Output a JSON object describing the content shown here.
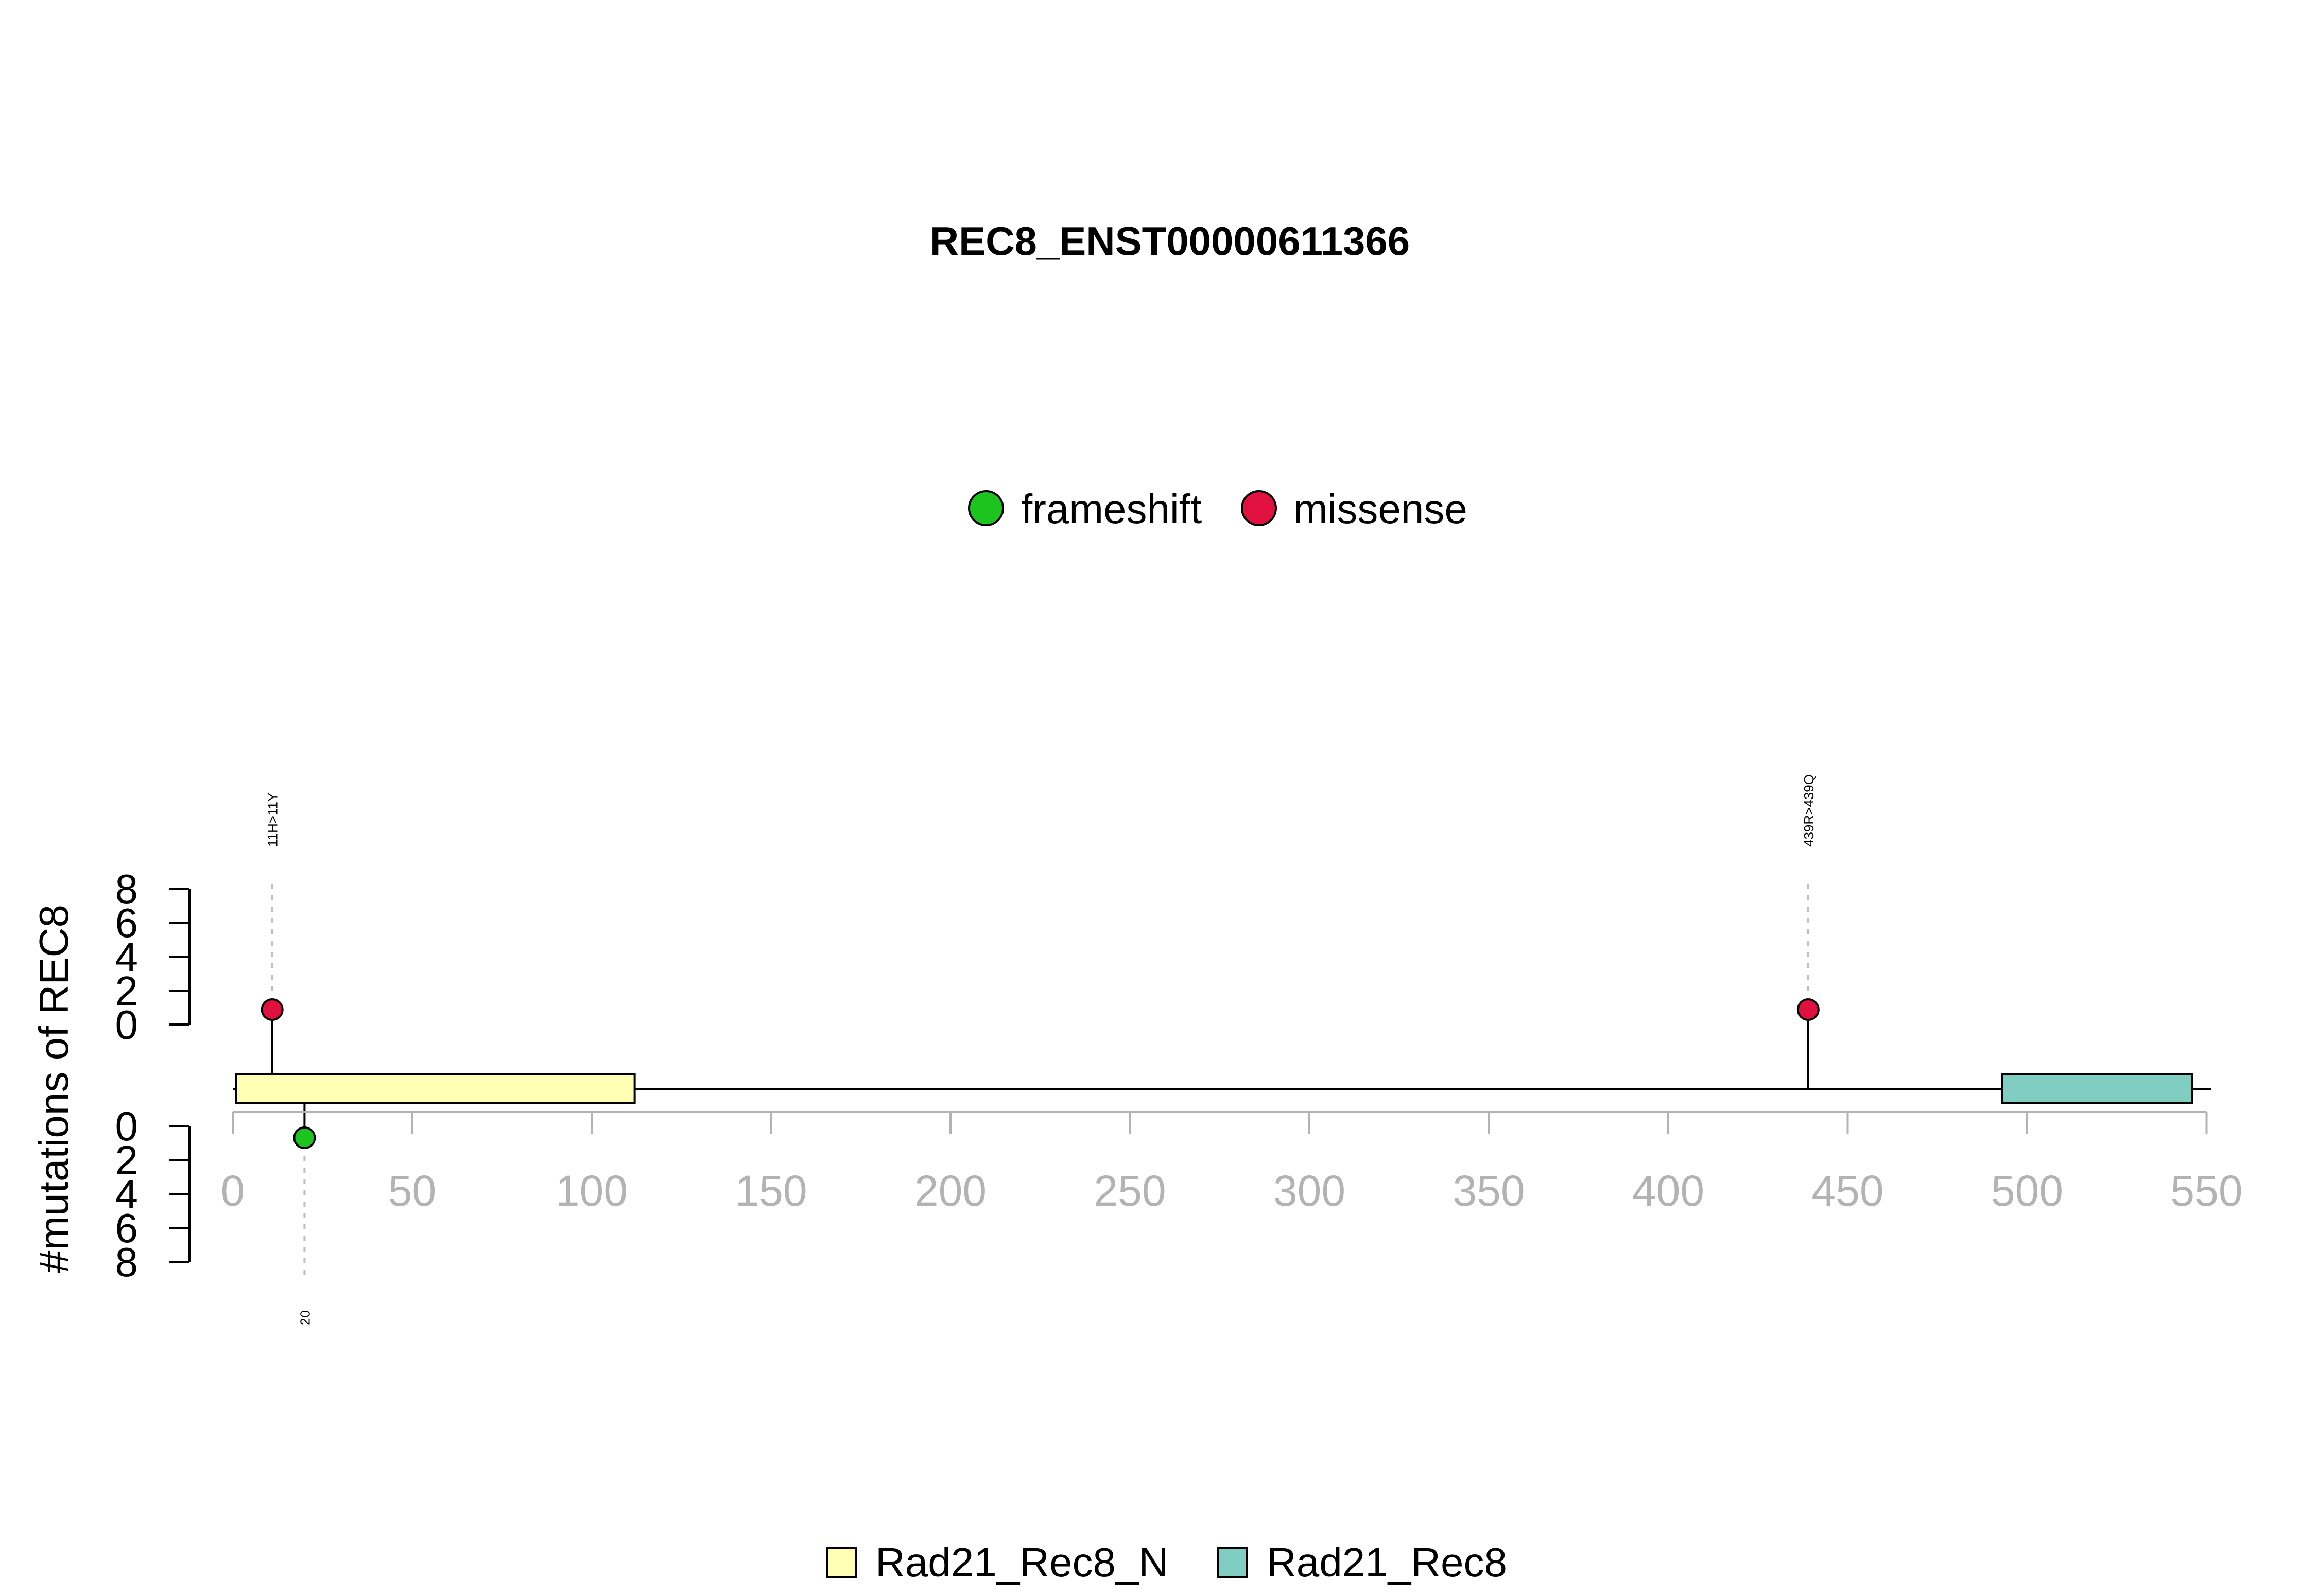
{
  "chart_data": {
    "type": "lollipop",
    "title": "REC8_ENST00000611366",
    "ylabel": "#mutations of REC8",
    "protein_length": 547,
    "x_ticks": [
      0,
      50,
      100,
      150,
      200,
      250,
      300,
      350,
      400,
      450,
      500,
      550
    ],
    "x_tick_labels": [
      "0",
      "50",
      "100",
      "150",
      "200",
      "250",
      "300",
      "350",
      "400",
      "450",
      "500",
      "550"
    ],
    "y_ticks": [
      0,
      2,
      4,
      6,
      8
    ],
    "y_tick_labels": [
      "0",
      "2",
      "4",
      "6",
      "8"
    ],
    "ylim": [
      0,
      8
    ],
    "mutation_legend": [
      {
        "label": "frameshift",
        "color": "#1ec41e"
      },
      {
        "label": "missense",
        "color": "#e0103f"
      }
    ],
    "domain_legend": [
      {
        "label": "Rad21_Rec8_N",
        "color": "#ffffb3"
      },
      {
        "label": "Rad21_Rec8",
        "color": "#80cdc1"
      }
    ],
    "domains": [
      {
        "name": "Rad21_Rec8_N",
        "start": 1,
        "end": 112,
        "color": "#ffffb3"
      },
      {
        "name": "Rad21_Rec8",
        "start": 493,
        "end": 546,
        "color": "#80cdc1"
      }
    ],
    "mutations": [
      {
        "position": 11,
        "label": "11H>11Y",
        "type": "missense",
        "count": 1,
        "side": "top",
        "color": "#e0103f"
      },
      {
        "position": 439,
        "label": "439R>439Q",
        "type": "missense",
        "count": 1,
        "side": "top",
        "color": "#e0103f"
      },
      {
        "position": 20,
        "label": "20",
        "type": "frameshift",
        "count": 1,
        "side": "bottom",
        "color": "#1ec41e"
      }
    ]
  }
}
